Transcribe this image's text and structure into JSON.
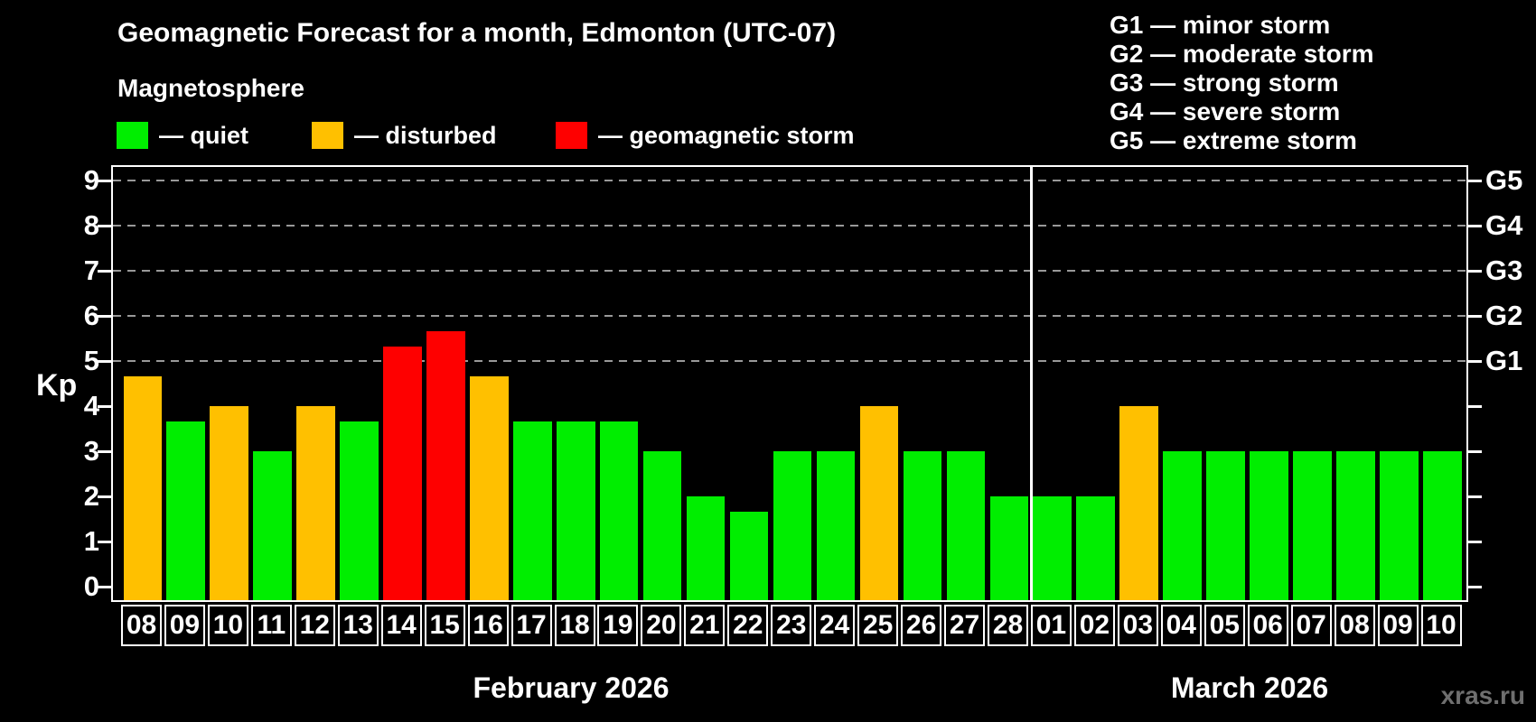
{
  "title": "Geomagnetic Forecast for a month, Edmonton (UTC-07)",
  "subtitle": "Magnetosphere",
  "status_legend": [
    {
      "key": "quiet",
      "label": "— quiet",
      "color": "#00ee00"
    },
    {
      "key": "disturbed",
      "label": "— disturbed",
      "color": "#ffc000"
    },
    {
      "key": "storm",
      "label": "— geomagnetic storm",
      "color": "#fe0000"
    }
  ],
  "g_scale_legend": [
    "G1 — minor storm",
    "G2 — moderate storm",
    "G3 — strong storm",
    "G4 — severe storm",
    "G5 — extreme storm"
  ],
  "watermark": "xras.ru",
  "colors": {
    "background": "#000000",
    "axis": "#ffffff",
    "grid": "#999999",
    "quiet": "#00ee00",
    "disturbed": "#ffc000",
    "storm": "#fe0000",
    "watermark": "#6f6f6f"
  },
  "chart_data": {
    "type": "bar",
    "ylabel": "Kp",
    "ylim": [
      0,
      9
    ],
    "y_ticks": [
      "0",
      "1",
      "2",
      "3",
      "4",
      "5",
      "6",
      "7",
      "8",
      "9"
    ],
    "grid_levels": [
      {
        "label": "G1",
        "kp": 5
      },
      {
        "label": "G2",
        "kp": 6
      },
      {
        "label": "G3",
        "kp": 7
      },
      {
        "label": "G4",
        "kp": 8
      },
      {
        "label": "G5",
        "kp": 9
      }
    ],
    "legend_position": "top",
    "grid": "dashed-horizontal-at-G-levels",
    "months": [
      {
        "label": "February 2026",
        "days": 21
      },
      {
        "label": "March 2026",
        "days": 10
      }
    ],
    "categories": [
      "08",
      "09",
      "10",
      "11",
      "12",
      "13",
      "14",
      "15",
      "16",
      "17",
      "18",
      "19",
      "20",
      "21",
      "22",
      "23",
      "24",
      "25",
      "26",
      "27",
      "28",
      "01",
      "02",
      "03",
      "04",
      "05",
      "06",
      "07",
      "08",
      "09",
      "10"
    ],
    "values": [
      4.67,
      3.67,
      4,
      3,
      4,
      3.67,
      5.33,
      5.67,
      4.67,
      3.67,
      3.67,
      3.67,
      3,
      2,
      1.67,
      3,
      3,
      4,
      3,
      3,
      2,
      2,
      2,
      4,
      3,
      3,
      3,
      3,
      3,
      3,
      3
    ],
    "levels": [
      "disturbed",
      "quiet",
      "disturbed",
      "quiet",
      "disturbed",
      "quiet",
      "storm",
      "storm",
      "disturbed",
      "quiet",
      "quiet",
      "quiet",
      "quiet",
      "quiet",
      "quiet",
      "quiet",
      "quiet",
      "disturbed",
      "quiet",
      "quiet",
      "quiet",
      "quiet",
      "quiet",
      "disturbed",
      "quiet",
      "quiet",
      "quiet",
      "quiet",
      "quiet",
      "quiet",
      "quiet"
    ]
  }
}
